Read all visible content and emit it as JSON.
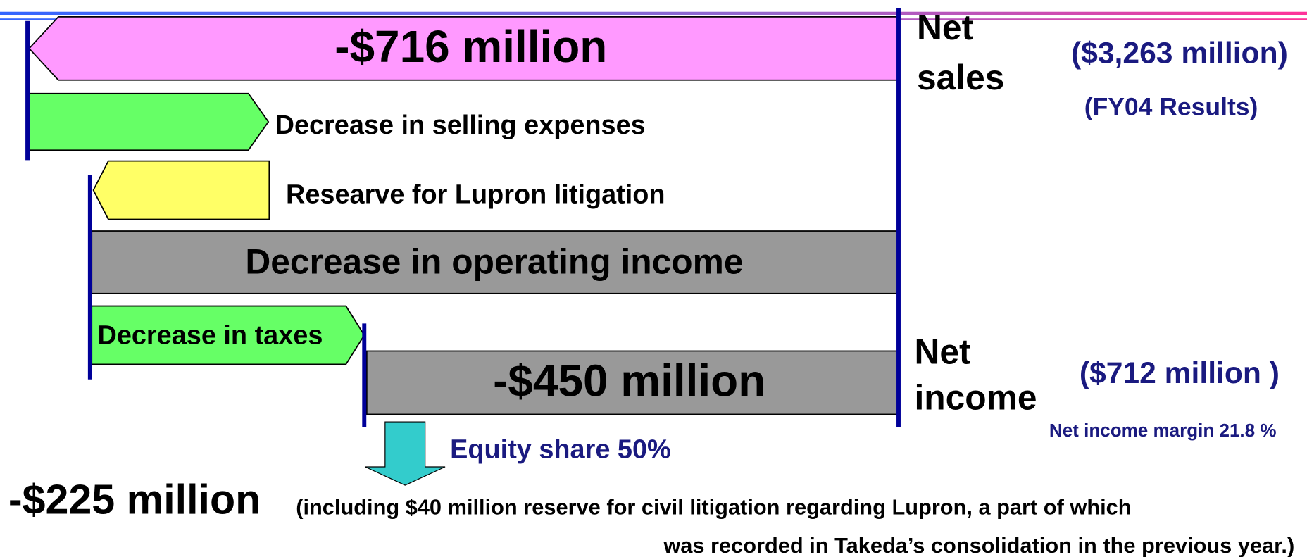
{
  "bars": {
    "net_sales_change": "-$716 million",
    "selling_expenses": "Decrease in selling expenses",
    "lupron_reserve": "Researve for Lupron litigation",
    "operating_income": "Decrease in operating income",
    "taxes": "Decrease in taxes",
    "net_income_change": "-$450 million"
  },
  "net_sales": {
    "label_line1": "Net",
    "label_line2": "sales",
    "amount": "($3,263 million)",
    "note": "(FY04 Results)"
  },
  "net_income": {
    "label_line1": "Net",
    "label_line2": "income",
    "amount": "($712 million )",
    "margin": "Net income margin 21.8 %"
  },
  "equity_share": "Equity share 50%",
  "result": {
    "amount": "-$225 million",
    "note_line1": "(including $40 million reserve for civil litigation regarding Lupron, a part of which",
    "note_line2": "was recorded in Takeda’s consolidation in the previous year.)"
  }
}
